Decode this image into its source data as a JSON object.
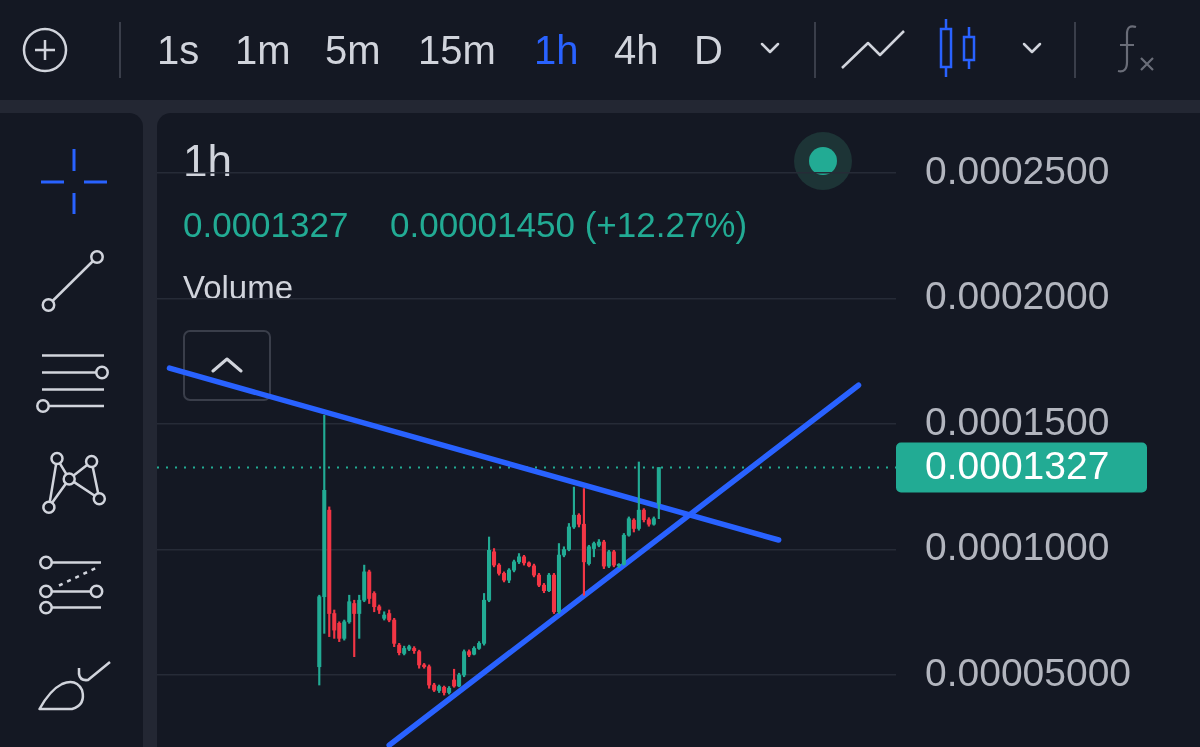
{
  "chart_data": {
    "type": "candlestick",
    "title": "1h",
    "categories": [
      null,
      null,
      null,
      null,
      null,
      null,
      null,
      null,
      null,
      null,
      null,
      null,
      null,
      null,
      null,
      null,
      null,
      null,
      null,
      null,
      null,
      null,
      null,
      null,
      null,
      null,
      null,
      null,
      null,
      null,
      null,
      null,
      null,
      null,
      null,
      null,
      null,
      null,
      null,
      null,
      null,
      null,
      null,
      null,
      null,
      null,
      null,
      null,
      null,
      null,
      null,
      null,
      null,
      null,
      null,
      null,
      null,
      null,
      null,
      null,
      null,
      null,
      null,
      null,
      null,
      null,
      null,
      null,
      null,
      null,
      null,
      null,
      null,
      null,
      null,
      null,
      null,
      null,
      null,
      null,
      null,
      null,
      null,
      null,
      null,
      null,
      null,
      null,
      null,
      null,
      null,
      null,
      null,
      null,
      null,
      null,
      null,
      null,
      null,
      null,
      null,
      null,
      null,
      null,
      null,
      null,
      null,
      null,
      null,
      null,
      null,
      null,
      null,
      null,
      null,
      null,
      null,
      null,
      null,
      null,
      null,
      null,
      null,
      null,
      null,
      null,
      null,
      null,
      null,
      null,
      null,
      null,
      null,
      null,
      null,
      null,
      null,
      null,
      null,
      null,
      null,
      null,
      null,
      null,
      null,
      null,
      null,
      null
    ],
    "ohlc": [
      null,
      null,
      null,
      null,
      null,
      null,
      null,
      null,
      null,
      null,
      null,
      null,
      null,
      null,
      null,
      null,
      null,
      null,
      null,
      null,
      null,
      null,
      null,
      null,
      null,
      null,
      null,
      null,
      null,
      null,
      null,
      null,
      [
        5.33e-05,
        8.18e-05,
        4.6e-05,
        8.12e-05
      ],
      [
        8.12e-05,
        0.0001535,
        6.66e-05,
        0.0001236
      ],
      [
        0.0001157,
        0.000117,
        6.53e-05,
        7.45e-05
      ],
      [
        7.45e-05,
        7.59e-05,
        6.46e-05,
        6.79e-05
      ],
      [
        7.06e-05,
        7.12e-05,
        6.33e-05,
        6.46e-05
      ],
      [
        6.46e-05,
        7.19e-05,
        6.39e-05,
        7.12e-05
      ],
      [
        7.12e-05,
        8.18e-05,
        7.06e-05,
        7.92e-05
      ],
      [
        7.85e-05,
        7.98e-05,
        5.73e-05,
        7.45e-05
      ],
      [
        7.45e-05,
        8.18e-05,
        6.46e-05,
        7.98e-05
      ],
      [
        7.98e-05,
        9.38e-05,
        7.92e-05,
        9.11e-05
      ],
      [
        9.11e-05,
        9.18e-05,
        7.85e-05,
        8.05e-05
      ],
      [
        8.25e-05,
        8.32e-05,
        7.52e-05,
        7.72e-05
      ],
      [
        7.72e-05,
        7.79e-05,
        7.45e-05,
        7.59e-05
      ],
      [
        7.26e-05,
        7.52e-05,
        7.19e-05,
        7.39e-05
      ],
      [
        7.45e-05,
        7.59e-05,
        7.12e-05,
        7.19e-05
      ],
      [
        7.19e-05,
        7.26e-05,
        6.13e-05,
        6.26e-05
      ],
      [
        6.19e-05,
        6.26e-05,
        5.8e-05,
        5.89e-05
      ],
      [
        5.86e-05,
        6.15e-05,
        5.8e-05,
        6.06e-05
      ],
      [
        6.03e-05,
        6.19e-05,
        5.97e-05,
        6.13e-05
      ],
      [
        6.06e-05,
        6.13e-05,
        5.86e-05,
        5.97e-05
      ],
      [
        5.93e-05,
        5.99e-05,
        5.27e-05,
        5.4e-05
      ],
      [
        5.4e-05,
        5.46e-05,
        5.27e-05,
        5.33e-05
      ],
      [
        5.33e-05,
        5.4e-05,
        4.47e-05,
        4.6e-05
      ],
      [
        4.6e-05,
        4.67e-05,
        4.34e-05,
        4.4e-05
      ],
      [
        4.38e-05,
        4.6e-05,
        4.3e-05,
        4.54e-05
      ],
      [
        4.51e-05,
        4.56e-05,
        4.2e-05,
        4.3e-05
      ],
      [
        4.3e-05,
        4.54e-05,
        4.24e-05,
        4.47e-05
      ],
      [
        4.8e-05,
        5.23e-05,
        4.51e-05,
        4.56e-05
      ],
      [
        4.56e-05,
        5.07e-05,
        4.53e-05,
        5e-05
      ],
      [
        5e-05,
        6e-05,
        4.93e-05,
        5.93e-05
      ],
      [
        5.93e-05,
        6e-05,
        5.73e-05,
        5.8e-05
      ],
      [
        5.83e-05,
        6.13e-05,
        5.8e-05,
        6.06e-05
      ],
      [
        6.06e-05,
        6.33e-05,
        6.02e-05,
        6.26e-05
      ],
      [
        6.26e-05,
        8.25e-05,
        6.19e-05,
        7.98e-05
      ],
      [
        7.98e-05,
        0.000105,
        7.92e-05,
        9.97e-05
      ],
      [
        9.91e-05,
        0.0001004,
        9.31e-05,
        9.38e-05
      ],
      [
        9.38e-05,
        9.44e-05,
        8.98e-05,
        9.05e-05
      ],
      [
        9.05e-05,
        9.11e-05,
        8.71e-05,
        8.78e-05
      ],
      [
        8.78e-05,
        9.24e-05,
        8.68e-05,
        9.18e-05
      ],
      [
        9.18e-05,
        9.58e-05,
        9.11e-05,
        9.51e-05
      ],
      [
        9.51e-05,
        9.84e-05,
        9.44e-05,
        9.71e-05
      ],
      [
        9.71e-05,
        9.77e-05,
        9.38e-05,
        9.47e-05
      ],
      [
        9.47e-05,
        9.51e-05,
        9.31e-05,
        9.35e-05
      ],
      [
        9.35e-05,
        9.42e-05,
        8.91e-05,
        8.98e-05
      ],
      [
        8.98e-05,
        9.05e-05,
        8.52e-05,
        8.58e-05
      ],
      [
        8.58e-05,
        8.65e-05,
        8.28e-05,
        8.36e-05
      ],
      [
        8.36e-05,
        9.05e-05,
        8.32e-05,
        8.98e-05
      ],
      [
        8.98e-05,
        9.05e-05,
        7.45e-05,
        7.52e-05
      ],
      [
        7.52e-05,
        0.0001024,
        7.45e-05,
        9.78e-05
      ],
      [
        9.78e-05,
        0.0001011,
        9.71e-05,
        0.0001
      ],
      [
        0.0001,
        0.0001104,
        9.95e-05,
        0.000109
      ],
      [
        0.000109,
        0.0001249,
        0.0001084,
        0.0001137
      ],
      [
        0.0001137,
        0.0001143,
        0.000109,
        0.0001101
      ],
      [
        0.0001101,
        0.0001243,
        8.18e-05,
        9.51e-05
      ],
      [
        9.44e-05,
        0.0001017,
        9.38e-05,
        0.0001011
      ],
      [
        0.0001004,
        0.000103,
        9.71e-05,
        0.0001024
      ],
      [
        0.0001017,
        0.000104,
        0.0001011,
        0.000103
      ],
      [
        0.000103,
        0.0001037,
        9.24e-05,
        9.34e-05
      ],
      [
        9.34e-05,
        9.97e-05,
        9.28e-05,
        9.91e-05
      ],
      [
        9.91e-05,
        9.97e-05,
        9.31e-05,
        9.38e-05
      ],
      [
        9.35e-05,
        9.44e-05,
        9.28e-05,
        9.41e-05
      ],
      [
        9.41e-05,
        0.0001064,
        9.38e-05,
        0.0001057
      ],
      [
        0.0001057,
        0.000113,
        0.0001053,
        0.0001123
      ],
      [
        0.0001117,
        0.0001123,
        0.000107,
        0.0001084
      ],
      [
        0.0001084,
        0.0001349,
        0.0001077,
        0.0001157
      ],
      [
        0.0001157,
        0.0001163,
        0.000111,
        0.0001119
      ],
      [
        0.0001119,
        0.0001127,
        0.0001093,
        0.0001101
      ],
      [
        0.0001101,
        0.000113,
        0.0001097,
        0.0001123
      ],
      [
        0.0001182,
        0.0001327,
        0.0001123,
        0.0001327
      ],
      null,
      null,
      null,
      null,
      null,
      null,
      null,
      null,
      null,
      null,
      null,
      null,
      null,
      null,
      null,
      null,
      null,
      null,
      null,
      null,
      null,
      null,
      null,
      null,
      null,
      null,
      null,
      null,
      null,
      null,
      null,
      null,
      null,
      null,
      null,
      null,
      null,
      null,
      null,
      null,
      null,
      null,
      null,
      null,
      null,
      null,
      null
    ],
    "colors": [
      null,
      null,
      null,
      null,
      null,
      null,
      null,
      null,
      null,
      null,
      null,
      null,
      null,
      null,
      null,
      null,
      null,
      null,
      null,
      null,
      null,
      null,
      null,
      null,
      null,
      null,
      null,
      null,
      null,
      null,
      null,
      null,
      "#22ab94",
      "#22ab94",
      "#f23645",
      "#f23645",
      "#f23645",
      "#22ab94",
      "#22ab94",
      "#f23645",
      "#22ab94",
      "#22ab94",
      "#f23645",
      "#f23645",
      "#f23645",
      "#22ab94",
      "#f23645",
      "#f23645",
      "#f23645",
      "#22ab94",
      "#22ab94",
      "#f23645",
      "#f23645",
      "#f23645",
      "#f23645",
      "#f23645",
      "#22ab94",
      "#f23645",
      "#22ab94",
      "#f23645",
      "#22ab94",
      "#22ab94",
      "#f23645",
      "#22ab94",
      "#22ab94",
      "#22ab94",
      "#22ab94",
      "#f23645",
      "#f23645",
      "#f23645",
      "#22ab94",
      "#22ab94",
      "#22ab94",
      "#f23645",
      "#f23645",
      "#f23645",
      "#f23645",
      "#f23645",
      "#22ab94",
      "#f23645",
      "#22ab94",
      "#22ab94",
      "#22ab94",
      "#22ab94",
      "#f23645",
      "#f23645",
      "#22ab94",
      "#22ab94",
      "#22ab94",
      "#f23645",
      "#22ab94",
      "#f23645",
      "#22ab94",
      "#22ab94",
      "#22ab94",
      "#f23645",
      "#22ab94",
      "#f23645",
      "#f23645",
      "#22ab94",
      "#22ab94",
      null,
      null,
      null,
      null,
      null,
      null,
      null,
      null,
      null,
      null,
      null,
      null,
      null,
      null,
      null,
      null,
      null,
      null,
      null,
      null,
      null,
      null,
      null,
      null,
      null,
      null,
      null,
      null,
      null,
      null,
      null,
      null,
      null,
      null,
      null,
      null,
      null,
      null,
      null,
      null,
      null,
      null,
      null,
      null,
      null,
      null,
      null
    ],
    "series": [
      {
        "type": "line",
        "color": "#2962ff",
        "values": [
          null,
          null,
          0.0001723,
          null,
          null,
          null,
          null,
          null,
          null,
          null,
          null,
          null,
          null,
          null,
          null,
          null,
          null,
          null,
          null,
          null,
          null,
          null,
          null,
          null,
          null,
          null,
          null,
          null,
          null,
          null,
          null,
          null,
          null,
          null,
          null,
          null,
          null,
          null,
          null,
          null,
          null,
          null,
          null,
          null,
          null,
          null,
          null,
          null,
          null,
          null,
          null,
          null,
          null,
          null,
          null,
          null,
          null,
          null,
          null,
          null,
          null,
          null,
          null,
          null,
          null,
          null,
          null,
          null,
          null,
          null,
          null,
          null,
          null,
          null,
          null,
          null,
          null,
          null,
          null,
          null,
          null,
          null,
          null,
          null,
          null,
          null,
          null,
          null,
          null,
          null,
          null,
          null,
          null,
          null,
          null,
          null,
          null,
          null,
          null,
          null,
          null,
          null,
          null,
          null,
          null,
          null,
          null,
          null,
          null,
          null,
          null,
          null,
          null,
          null,
          null,
          null,
          null,
          null,
          null,
          null,
          null,
          null,
          null,
          null,
          0.0001038,
          null,
          null,
          null,
          null,
          null,
          null,
          null,
          null,
          null,
          null,
          null,
          null,
          null,
          null,
          null,
          null,
          null,
          null,
          null,
          null,
          null,
          null,
          null
        ]
      },
      {
        "type": "line",
        "color": "#2962ff",
        "values": [
          null,
          null,
          null,
          null,
          null,
          null,
          null,
          null,
          null,
          null,
          null,
          null,
          null,
          null,
          null,
          null,
          null,
          null,
          null,
          null,
          null,
          null,
          null,
          null,
          null,
          null,
          null,
          null,
          null,
          null,
          null,
          null,
          null,
          null,
          null,
          null,
          null,
          null,
          null,
          null,
          null,
          null,
          null,
          null,
          null,
          null,
          2.2e-05,
          null,
          null,
          null,
          null,
          null,
          null,
          null,
          null,
          null,
          null,
          null,
          null,
          null,
          null,
          null,
          null,
          null,
          null,
          null,
          null,
          null,
          null,
          null,
          null,
          null,
          null,
          null,
          null,
          null,
          null,
          null,
          null,
          null,
          null,
          null,
          null,
          null,
          null,
          null,
          null,
          null,
          null,
          null,
          null,
          null,
          null,
          null,
          null,
          null,
          null,
          null,
          null,
          null,
          null,
          null,
          null,
          null,
          null,
          null,
          null,
          null,
          null,
          null,
          null,
          null,
          null,
          null,
          null,
          null,
          null,
          null,
          null,
          null,
          null,
          null,
          null,
          null,
          null,
          null,
          null,
          null,
          null,
          null,
          null,
          null,
          null,
          null,
          null,
          null,
          null,
          null,
          null,
          null,
          0.0001655,
          null,
          null,
          null,
          null,
          null,
          null,
          null
        ]
      }
    ],
    "ylim": [
      2.13e-05,
      0.000274
    ],
    "yticks": [
      {
        "value": 5e-05,
        "label": "0.00005000"
      },
      {
        "value": 0.0001,
        "label": "0.0001000"
      },
      {
        "value": 0.00015,
        "label": "0.0001500"
      },
      {
        "value": 0.0002,
        "label": "0.0002000"
      },
      {
        "value": 0.00025,
        "label": "0.0002500"
      }
    ],
    "ref_lines": [
      {
        "axis": "y",
        "value": 0.0001327,
        "label": "0.0001327",
        "color": "#22ab94",
        "line_style": "dotted"
      }
    ],
    "annotations": [
      "1s",
      "1m",
      "5m",
      "15m",
      "1h",
      "4h",
      "D",
      "0.0001327",
      "0.00001450 (+12.27%)",
      "Volume"
    ],
    "grid": "y",
    "tick_labels": "y",
    "marker": "none",
    "line_style": "solid"
  }
}
